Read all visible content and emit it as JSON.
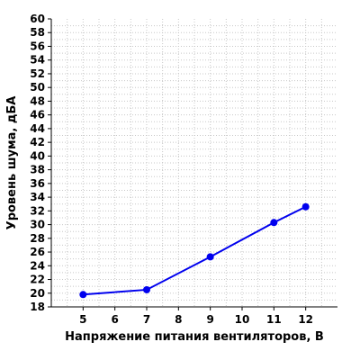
{
  "colors": {
    "series": "#0000ee",
    "grid": "#c8c8c8",
    "axis": "#000000",
    "background": "#ffffff"
  },
  "chart_data": {
    "type": "line",
    "title": "",
    "xlabel": "Напряжение питания вентиляторов, В",
    "ylabel": "Уровень шума, дБА",
    "xlim": [
      4,
      13
    ],
    "ylim": [
      18,
      60
    ],
    "x_ticks": [
      5,
      6,
      7,
      8,
      9,
      10,
      11,
      12
    ],
    "y_ticks": [
      18,
      20,
      22,
      24,
      26,
      28,
      30,
      32,
      34,
      36,
      38,
      40,
      42,
      44,
      46,
      48,
      50,
      52,
      54,
      56,
      58,
      60
    ],
    "grid": true,
    "legend": "none",
    "series": [
      {
        "x": [
          5,
          7,
          9,
          11,
          12
        ],
        "y": [
          19.8,
          20.5,
          25.3,
          30.3,
          32.6
        ]
      }
    ]
  }
}
